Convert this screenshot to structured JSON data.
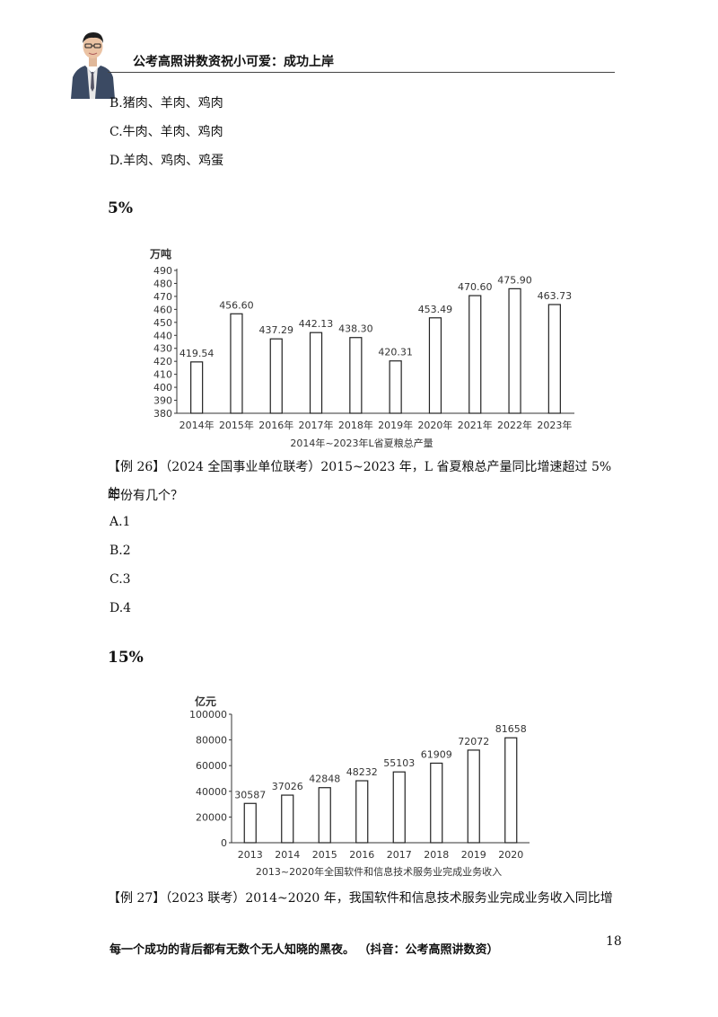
{
  "header": {
    "title": "公考高照讲数资祝小可爱：成功上岸"
  },
  "prev_options": [
    "B.猪肉、羊肉、鸡肉",
    "C.牛肉、羊肉、鸡肉",
    "D.羊肉、鸡肉、鸡蛋"
  ],
  "section1": {
    "heading": "5%",
    "question_line1": "【例 26】（2024 全国事业单位联考）2015~2023 年，L 省夏粮总产量同比增速超过 5%的",
    "question_line2": "年份有几个？",
    "options": [
      "A.1",
      "B.2",
      "C.3",
      "D.4"
    ]
  },
  "section2": {
    "heading": "15%",
    "question_line1": "【例 27】（2023 联考）2014~2020 年，我国软件和信息技术服务业完成业务收入同比增"
  },
  "footer": {
    "text": "每一个成功的背后都有无数个无人知晓的黑夜。 （抖音：公考高照讲数资）",
    "page_number": "18"
  },
  "chart_data": [
    {
      "type": "bar",
      "ylabel": "万吨",
      "title": "2014年~2023年L省夏粮总产量",
      "categories": [
        "2014年",
        "2015年",
        "2016年",
        "2017年",
        "2018年",
        "2019年",
        "2020年",
        "2021年",
        "2022年",
        "2023年"
      ],
      "values": [
        419.54,
        456.6,
        437.29,
        442.13,
        438.3,
        420.31,
        453.49,
        470.6,
        475.9,
        463.73
      ],
      "value_labels": [
        "419.54",
        "456.60",
        "437.29",
        "442.13",
        "438.30",
        "420.31",
        "453.49",
        "470.60",
        "475.90",
        "463.73"
      ],
      "ylim": [
        380,
        490
      ],
      "yticks": [
        "380",
        "390",
        "400",
        "410",
        "420",
        "430",
        "440",
        "450",
        "460",
        "470",
        "480",
        "490"
      ],
      "grid": false
    },
    {
      "type": "bar",
      "ylabel": "亿元",
      "title": "2013~2020年全国软件和信息技术服务业完成业务收入",
      "categories": [
        "2013",
        "2014",
        "2015",
        "2016",
        "2017",
        "2018",
        "2019",
        "2020"
      ],
      "values": [
        30587,
        37026,
        42848,
        48232,
        55103,
        61909,
        72072,
        81658
      ],
      "value_labels": [
        "30587",
        "37026",
        "42848",
        "48232",
        "55103",
        "61909",
        "72072",
        "81658"
      ],
      "ylim": [
        0,
        100000
      ],
      "yticks": [
        "0",
        "20000",
        "40000",
        "60000",
        "80000",
        "100000"
      ],
      "grid": false
    }
  ]
}
